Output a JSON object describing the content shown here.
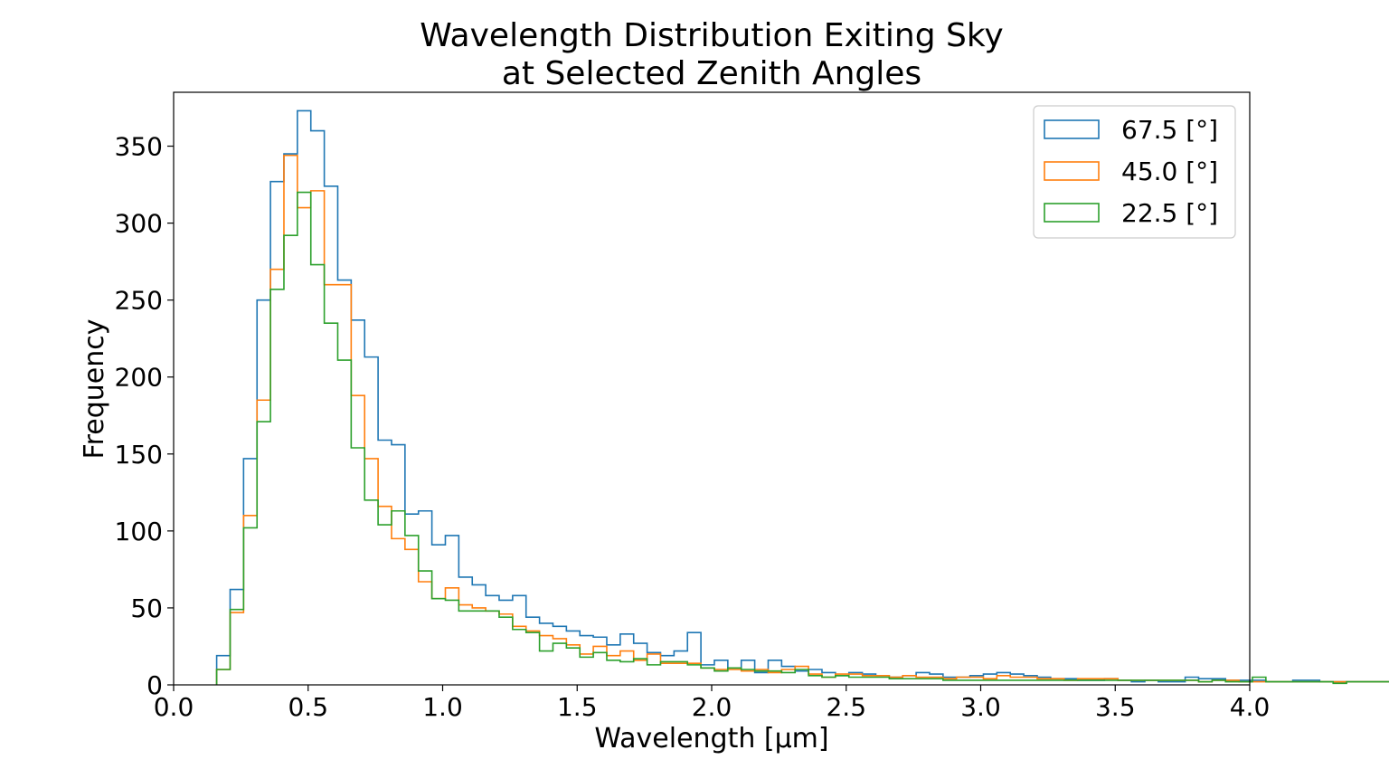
{
  "chart_data": {
    "type": "histogram",
    "title_line1": "Wavelength Distribution Exiting Sky",
    "title_line2": "at Selected Zenith Angles",
    "xlabel": "Wavelength [μm]",
    "ylabel": "Frequency",
    "xlim": [
      0.0,
      4.0
    ],
    "ylim": [
      0,
      385
    ],
    "x_ticks": [
      0.0,
      0.5,
      1.0,
      1.5,
      2.0,
      2.5,
      3.0,
      3.5,
      4.0
    ],
    "x_tick_labels": [
      "0.0",
      "0.5",
      "1.0",
      "1.5",
      "2.0",
      "2.5",
      "3.0",
      "3.5",
      "4.0"
    ],
    "y_ticks": [
      0,
      50,
      100,
      150,
      200,
      250,
      300,
      350
    ],
    "y_tick_labels": [
      "0",
      "50",
      "100",
      "150",
      "200",
      "250",
      "300",
      "350"
    ],
    "grid": false,
    "legend_position": "top-right",
    "bin_start": 0.16,
    "bin_width": 0.05,
    "series": [
      {
        "name": "67.5 [°]",
        "color": "#1f77b4",
        "values": [
          19,
          62,
          147,
          250,
          327,
          345,
          373,
          360,
          324,
          263,
          237,
          213,
          159,
          156,
          111,
          113,
          91,
          97,
          70,
          65,
          58,
          55,
          58,
          44,
          40,
          38,
          35,
          32,
          31,
          26,
          33,
          27,
          21,
          19,
          22,
          34,
          13,
          16,
          11,
          16,
          8,
          16,
          12,
          9,
          10,
          8,
          6,
          8,
          7,
          6,
          5,
          6,
          8,
          7,
          5,
          5,
          6,
          7,
          8,
          7,
          6,
          5,
          4,
          4,
          3,
          3,
          4,
          3,
          2,
          3,
          2,
          2,
          5,
          4,
          4,
          3,
          3,
          3,
          2,
          2,
          3,
          3,
          2,
          2,
          2,
          2,
          2,
          2,
          2,
          2,
          2,
          2,
          2,
          2,
          2,
          1,
          1,
          1,
          1,
          1,
          1,
          1,
          1,
          1,
          1,
          1,
          1,
          1,
          1,
          1,
          1,
          1,
          1,
          2,
          2,
          1,
          1,
          1,
          1,
          1
        ]
      },
      {
        "name": "45.0 [°]",
        "color": "#ff7f0e",
        "values": [
          10,
          47,
          110,
          185,
          270,
          344,
          310,
          321,
          260,
          260,
          188,
          147,
          116,
          95,
          88,
          67,
          56,
          63,
          52,
          50,
          48,
          46,
          38,
          35,
          32,
          30,
          26,
          20,
          25,
          19,
          22,
          16,
          20,
          14,
          14,
          14,
          11,
          10,
          10,
          9,
          10,
          8,
          10,
          12,
          7,
          5,
          7,
          7,
          6,
          6,
          5,
          6,
          5,
          5,
          4,
          5,
          5,
          4,
          6,
          5,
          5,
          4,
          4,
          3,
          4,
          4,
          4,
          3,
          3,
          3,
          3,
          3,
          3,
          2,
          3,
          3,
          2,
          2,
          2,
          2,
          2,
          2,
          2,
          2,
          2,
          2,
          2,
          2,
          2,
          2,
          2,
          2,
          2,
          1,
          2,
          2,
          2,
          2,
          3,
          2,
          2,
          2,
          1,
          1,
          1,
          1,
          1,
          1,
          1,
          5,
          4,
          1,
          1,
          1,
          1,
          1,
          1,
          1,
          1,
          1
        ]
      },
      {
        "name": "22.5 [°]",
        "color": "#2ca02c",
        "values": [
          10,
          49,
          102,
          171,
          257,
          292,
          320,
          273,
          235,
          211,
          154,
          120,
          104,
          113,
          97,
          74,
          56,
          55,
          48,
          48,
          48,
          44,
          36,
          34,
          22,
          27,
          24,
          18,
          21,
          16,
          15,
          17,
          13,
          15,
          15,
          13,
          11,
          9,
          11,
          10,
          9,
          9,
          8,
          10,
          6,
          5,
          6,
          5,
          5,
          5,
          4,
          4,
          4,
          4,
          3,
          3,
          3,
          3,
          3,
          3,
          3,
          3,
          3,
          3,
          3,
          3,
          3,
          3,
          3,
          3,
          3,
          3,
          3,
          2,
          3,
          2,
          2,
          5,
          2,
          2,
          2,
          2,
          2,
          1,
          2,
          2,
          2,
          2,
          2,
          2,
          2,
          2,
          2,
          2,
          2,
          2,
          1,
          2,
          1,
          1,
          1,
          1,
          1,
          1,
          1,
          1,
          1,
          1,
          1,
          1,
          1,
          1,
          1,
          1,
          1,
          1,
          1,
          1,
          1,
          1
        ]
      }
    ]
  }
}
